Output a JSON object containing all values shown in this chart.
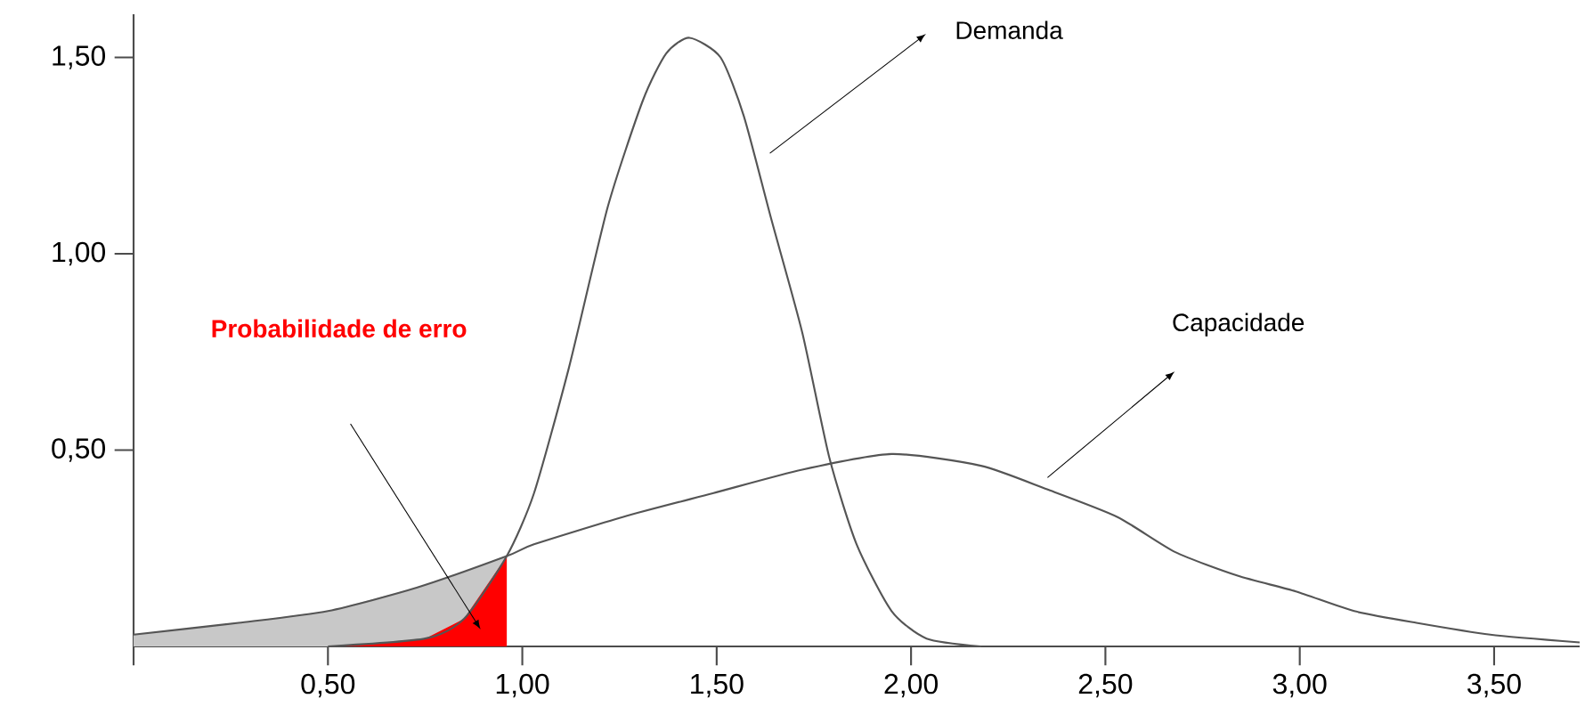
{
  "chart_data": {
    "type": "line",
    "xlim": [
      0,
      3.72
    ],
    "ylim": [
      0,
      1.61
    ],
    "xticks": [
      {
        "value": 0,
        "label": null
      },
      {
        "value": 0.5,
        "label": "0,50"
      },
      {
        "value": 1.0,
        "label": "1,00"
      },
      {
        "value": 1.5,
        "label": "1,50"
      },
      {
        "value": 2.0,
        "label": "2,00"
      },
      {
        "value": 2.5,
        "label": "2,50"
      },
      {
        "value": 3.0,
        "label": "3,00"
      },
      {
        "value": 3.5,
        "label": "3,50"
      }
    ],
    "yticks": [
      {
        "value": 0.5,
        "label": "0,50"
      },
      {
        "value": 1.0,
        "label": "1,00"
      },
      {
        "value": 1.5,
        "label": "1,50"
      }
    ],
    "grid": false,
    "line_style": "solid",
    "series": [
      {
        "type": "area",
        "color": "#c8c8c8",
        "x": [
          0,
          0.27,
          0.5,
          0.73,
          0.85,
          0.96
        ],
        "values": [
          0.03,
          0.06,
          0.09,
          0.15,
          0.19,
          0.23
        ]
      },
      {
        "type": "area",
        "color": "#ff0000",
        "x": [
          0.5,
          0.6,
          0.75,
          0.85,
          0.96
        ],
        "values": [
          0,
          0.005,
          0.02,
          0.07,
          0.23
        ]
      },
      {
        "color": "#555555",
        "x": [
          0.5,
          0.75,
          0.85,
          0.96,
          1.03,
          1.12,
          1.22,
          1.31,
          1.37,
          1.43,
          1.51,
          1.57,
          1.64,
          1.72,
          1.79,
          1.86,
          1.95,
          2.04,
          2.18
        ],
        "values": [
          0,
          0.02,
          0.07,
          0.23,
          0.39,
          0.71,
          1.12,
          1.39,
          1.51,
          1.55,
          1.5,
          1.35,
          1.09,
          0.8,
          0.48,
          0.26,
          0.09,
          0.02,
          0
        ]
      },
      {
        "color": "#555555",
        "x": [
          0,
          0.27,
          0.5,
          0.73,
          0.96,
          1.03,
          1.26,
          1.49,
          1.72,
          1.95,
          2.18,
          2.35,
          2.53,
          2.68,
          2.84,
          2.99,
          3.14,
          3.3,
          3.49,
          3.72
        ],
        "values": [
          0.03,
          0.06,
          0.09,
          0.15,
          0.23,
          0.26,
          0.33,
          0.39,
          0.45,
          0.49,
          0.46,
          0.4,
          0.33,
          0.24,
          0.18,
          0.14,
          0.09,
          0.06,
          0.03,
          0.01
        ]
      }
    ],
    "annotations": [
      "Demanda",
      "Capacidade",
      "**Probabilidade de erro**"
    ]
  }
}
